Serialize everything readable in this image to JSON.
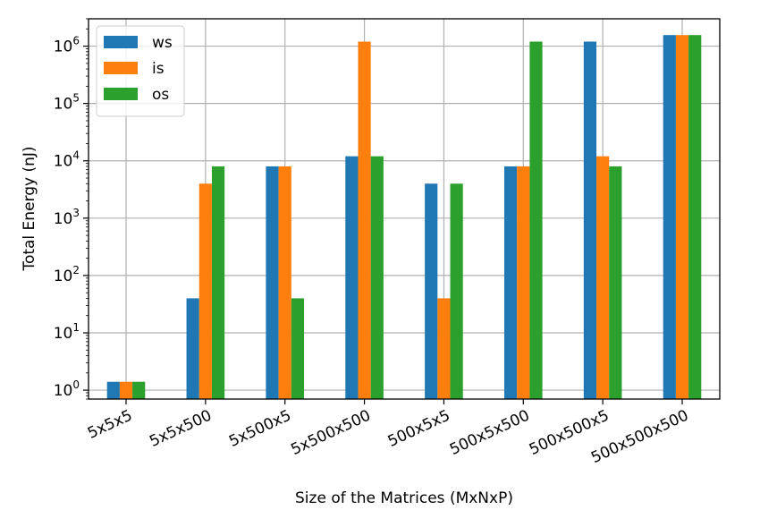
{
  "chart_data": {
    "type": "bar",
    "title": "",
    "xlabel": "Size of the Matrices (MxNxP)",
    "ylabel": "Total Energy (nJ)",
    "yscale": "log",
    "ylim": [
      0.7,
      3000000
    ],
    "yticks": [
      1,
      10,
      100,
      1000,
      10000,
      100000,
      1000000
    ],
    "ytick_labels": [
      {
        "base": "10",
        "exp": "0"
      },
      {
        "base": "10",
        "exp": "1"
      },
      {
        "base": "10",
        "exp": "2"
      },
      {
        "base": "10",
        "exp": "3"
      },
      {
        "base": "10",
        "exp": "4"
      },
      {
        "base": "10",
        "exp": "5"
      },
      {
        "base": "10",
        "exp": "6"
      }
    ],
    "grid": true,
    "legend_position": "top-left",
    "categories": [
      "5x5x5",
      "5x5x500",
      "5x500x5",
      "5x500x500",
      "500x5x5",
      "500x5x500",
      "500x500x5",
      "500x500x500"
    ],
    "series": [
      {
        "name": "ws",
        "color": "#1f77b4",
        "values": [
          1.4,
          40,
          8000,
          12000,
          4000,
          8000,
          1200000,
          1560000
        ]
      },
      {
        "name": "is",
        "color": "#ff7f0e",
        "values": [
          1.4,
          4000,
          8000,
          1200000,
          40,
          8000,
          12000,
          1560000
        ]
      },
      {
        "name": "os",
        "color": "#2ca02c",
        "values": [
          1.4,
          8000,
          40,
          12000,
          4000,
          1200000,
          8000,
          1560000
        ]
      }
    ]
  }
}
